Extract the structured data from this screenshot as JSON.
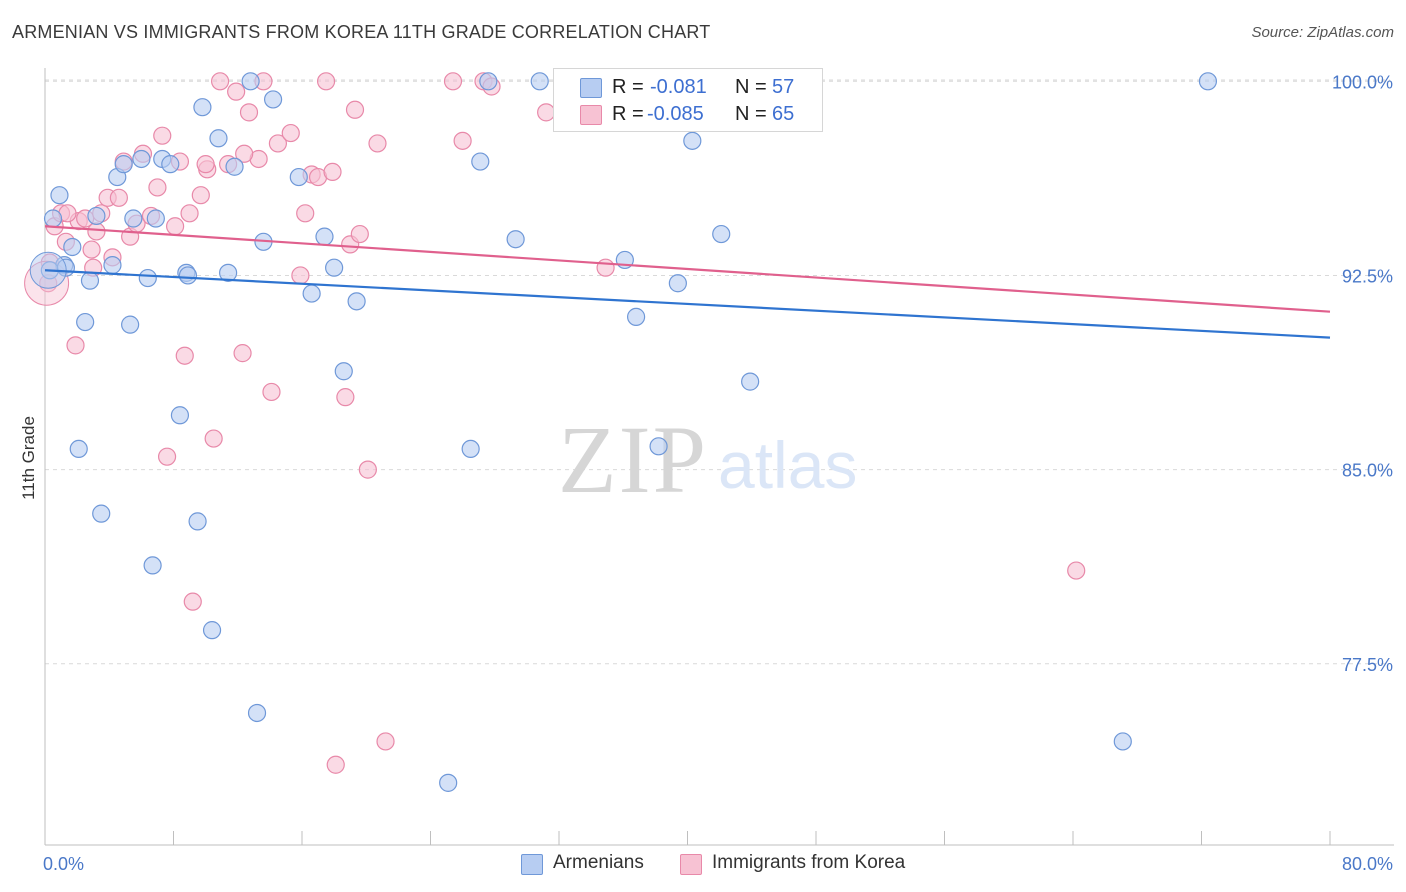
{
  "title": "ARMENIAN VS IMMIGRANTS FROM KOREA 11TH GRADE CORRELATION CHART",
  "source": "Source: ZipAtlas.com",
  "watermark": {
    "zip": "ZIP",
    "atlas": "atlas"
  },
  "stats": {
    "armenians": {
      "r_label": "R =",
      "r_value": "-0.081",
      "n_label": "N =",
      "n_value": "57"
    },
    "korea": {
      "r_label": "R =",
      "r_value": "-0.085",
      "n_label": "N =",
      "n_value": "65"
    }
  },
  "legend": {
    "armenians": "Armenians",
    "korea": "Immigrants from Korea"
  },
  "colors": {
    "blue_fill": "#b7cdf2",
    "blue_stroke": "#6f98d8",
    "blue_line": "#2f74d0",
    "pink_fill": "#f7c2d3",
    "pink_stroke": "#e889a9",
    "pink_line": "#e0608d",
    "tick_label": "#4a78c8",
    "grid": "#d9d9d9"
  },
  "chart_data": {
    "type": "scatter",
    "title": "ARMENIAN VS IMMIGRANTS FROM KOREA 11TH GRADE CORRELATION CHART",
    "xlabel": "",
    "ylabel": "11th Grade",
    "xlim": [
      0,
      80
    ],
    "ylim": [
      70.5,
      100.9
    ],
    "x_tick_labels": [
      "0.0%",
      "80.0%"
    ],
    "y_ticks": [
      77.5,
      85.0,
      92.5,
      100.0
    ],
    "y_tick_labels": [
      "77.5%",
      "85.0%",
      "92.5%",
      "100.0%"
    ],
    "grid": "horizontal dashed",
    "legend_position": "bottom-center",
    "series": [
      {
        "name": "Armenians",
        "color": "#b7cdf2",
        "trend": {
          "x": [
            0,
            80
          ],
          "y": [
            92.7,
            90.1
          ]
        },
        "points": [
          [
            0.5,
            94.7
          ],
          [
            0.9,
            95.6
          ],
          [
            1.2,
            92.9
          ],
          [
            1.7,
            93.6
          ],
          [
            2.1,
            85.8
          ],
          [
            2.5,
            90.7
          ],
          [
            2.8,
            92.3
          ],
          [
            3.2,
            94.8
          ],
          [
            3.5,
            83.3
          ],
          [
            4.2,
            92.9
          ],
          [
            4.5,
            96.3
          ],
          [
            4.9,
            96.8
          ],
          [
            5.3,
            90.6
          ],
          [
            5.5,
            94.7
          ],
          [
            6.0,
            97.0
          ],
          [
            6.4,
            92.4
          ],
          [
            6.7,
            81.3
          ],
          [
            6.9,
            94.7
          ],
          [
            7.3,
            97.0
          ],
          [
            7.8,
            96.8
          ],
          [
            8.4,
            87.1
          ],
          [
            8.8,
            92.6
          ],
          [
            9.5,
            83.0
          ],
          [
            9.8,
            99.0
          ],
          [
            10.4,
            78.8
          ],
          [
            10.8,
            97.8
          ],
          [
            11.4,
            92.6
          ],
          [
            11.8,
            96.7
          ],
          [
            12.8,
            100.0
          ],
          [
            13.2,
            75.6
          ],
          [
            13.6,
            93.8
          ],
          [
            14.2,
            99.3
          ],
          [
            15.8,
            96.3
          ],
          [
            16.6,
            91.8
          ],
          [
            17.4,
            94.0
          ],
          [
            18.0,
            92.8
          ],
          [
            18.6,
            88.8
          ],
          [
            19.4,
            91.5
          ],
          [
            25.1,
            72.9
          ],
          [
            26.5,
            85.8
          ],
          [
            27.1,
            96.9
          ],
          [
            27.6,
            100.0
          ],
          [
            29.3,
            93.9
          ],
          [
            30.8,
            100.0
          ],
          [
            34.8,
            100.0
          ],
          [
            36.1,
            93.1
          ],
          [
            36.8,
            90.9
          ],
          [
            38.2,
            85.9
          ],
          [
            39.4,
            92.2
          ],
          [
            40.3,
            97.7
          ],
          [
            42.1,
            94.1
          ],
          [
            43.9,
            88.4
          ],
          [
            67.1,
            74.5
          ],
          [
            72.4,
            100.0
          ],
          [
            0.3,
            92.7
          ],
          [
            1.3,
            92.8
          ],
          [
            8.9,
            92.5
          ]
        ]
      },
      {
        "name": "Immigrants from Korea",
        "color": "#f7c2d3",
        "trend": {
          "x": [
            0,
            80
          ],
          "y": [
            94.4,
            91.1
          ]
        },
        "points": [
          [
            0.3,
            93.0
          ],
          [
            0.6,
            94.4
          ],
          [
            1.0,
            94.9
          ],
          [
            1.3,
            93.8
          ],
          [
            1.9,
            89.8
          ],
          [
            2.1,
            94.6
          ],
          [
            2.5,
            94.7
          ],
          [
            2.9,
            93.5
          ],
          [
            3.2,
            94.2
          ],
          [
            3.5,
            94.9
          ],
          [
            3.9,
            95.5
          ],
          [
            4.2,
            93.2
          ],
          [
            4.6,
            95.5
          ],
          [
            4.9,
            96.9
          ],
          [
            5.3,
            94.0
          ],
          [
            5.7,
            94.5
          ],
          [
            6.1,
            97.2
          ],
          [
            6.6,
            94.8
          ],
          [
            7.0,
            95.9
          ],
          [
            7.3,
            97.9
          ],
          [
            7.6,
            85.5
          ],
          [
            8.1,
            94.4
          ],
          [
            8.4,
            96.9
          ],
          [
            8.7,
            89.4
          ],
          [
            9.0,
            94.9
          ],
          [
            9.2,
            79.9
          ],
          [
            9.7,
            95.6
          ],
          [
            10.1,
            96.6
          ],
          [
            10.5,
            86.2
          ],
          [
            10.9,
            100.0
          ],
          [
            11.4,
            96.8
          ],
          [
            11.9,
            99.6
          ],
          [
            12.3,
            89.5
          ],
          [
            12.7,
            98.8
          ],
          [
            13.3,
            97.0
          ],
          [
            13.6,
            100.0
          ],
          [
            14.1,
            88.0
          ],
          [
            14.5,
            97.6
          ],
          [
            15.3,
            98.0
          ],
          [
            15.9,
            92.5
          ],
          [
            16.2,
            94.9
          ],
          [
            16.6,
            96.4
          ],
          [
            17.0,
            96.3
          ],
          [
            17.5,
            100.0
          ],
          [
            18.1,
            73.6
          ],
          [
            18.7,
            87.8
          ],
          [
            19.0,
            93.7
          ],
          [
            19.3,
            98.9
          ],
          [
            19.6,
            94.1
          ],
          [
            20.1,
            85.0
          ],
          [
            20.7,
            97.6
          ],
          [
            21.2,
            74.5
          ],
          [
            25.4,
            100.0
          ],
          [
            26.0,
            97.7
          ],
          [
            27.3,
            100.0
          ],
          [
            27.8,
            99.8
          ],
          [
            31.2,
            98.8
          ],
          [
            34.9,
            92.8
          ],
          [
            64.2,
            81.1
          ],
          [
            0.2,
            92.2
          ],
          [
            1.4,
            94.9
          ],
          [
            3.0,
            92.8
          ],
          [
            10.0,
            96.8
          ],
          [
            17.9,
            96.5
          ],
          [
            12.4,
            97.2
          ]
        ]
      }
    ]
  }
}
